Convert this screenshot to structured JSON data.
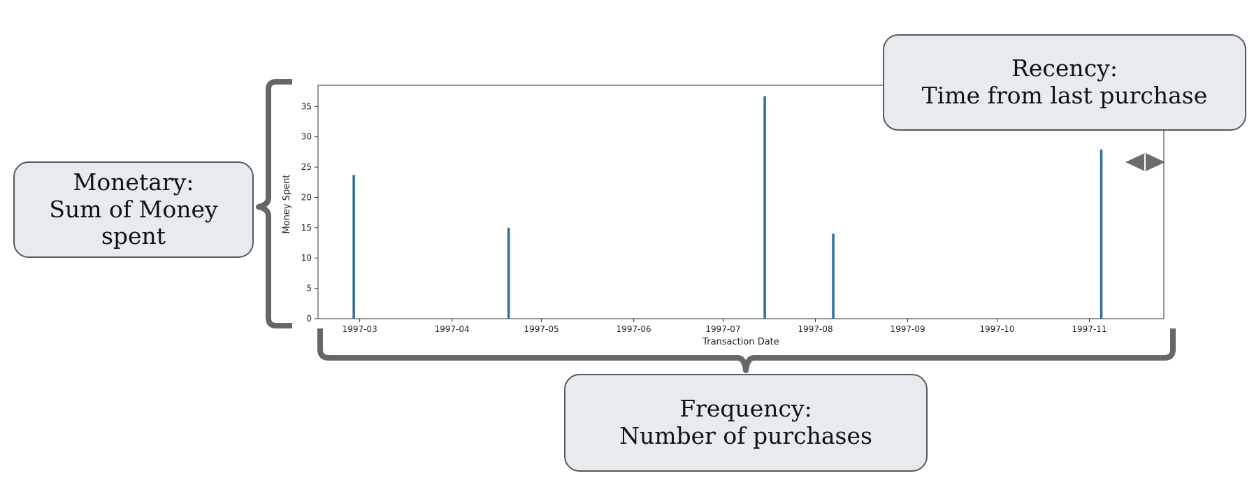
{
  "chart_data": {
    "type": "bar",
    "title": "",
    "xlabel": "Transaction Date",
    "ylabel": "Money Spent",
    "x_tick_labels": [
      "1997-03",
      "1997-04",
      "1997-05",
      "1997-06",
      "1997-07",
      "1997-08",
      "1997-09",
      "1997-10",
      "1997-11"
    ],
    "y_ticks": [
      0,
      5,
      10,
      15,
      20,
      25,
      30,
      35
    ],
    "ylim": [
      0,
      38.5
    ],
    "xlim": [
      "1997-02-15",
      "1997-11-26"
    ],
    "grid": false,
    "bar_color": "#2f6e9e",
    "transactions": [
      {
        "date": "1997-02-27",
        "value": 23.7
      },
      {
        "date": "1997-04-20",
        "value": 15.0
      },
      {
        "date": "1997-07-15",
        "value": 36.7
      },
      {
        "date": "1997-08-07",
        "value": 14.0
      },
      {
        "date": "1997-11-05",
        "value": 27.9
      }
    ]
  },
  "annotations": {
    "monetary": {
      "line1": "Monetary:",
      "line2": "Sum of Money",
      "line3": "spent"
    },
    "recency": {
      "line1": "Recency:",
      "line2": "Time from last purchase"
    },
    "frequency": {
      "line1": "Frequency:",
      "line2": "Number of purchases"
    }
  },
  "colors": {
    "bracket": "#66676b",
    "callout_fill": "#e8ebee",
    "callout_border": "#555a60"
  }
}
